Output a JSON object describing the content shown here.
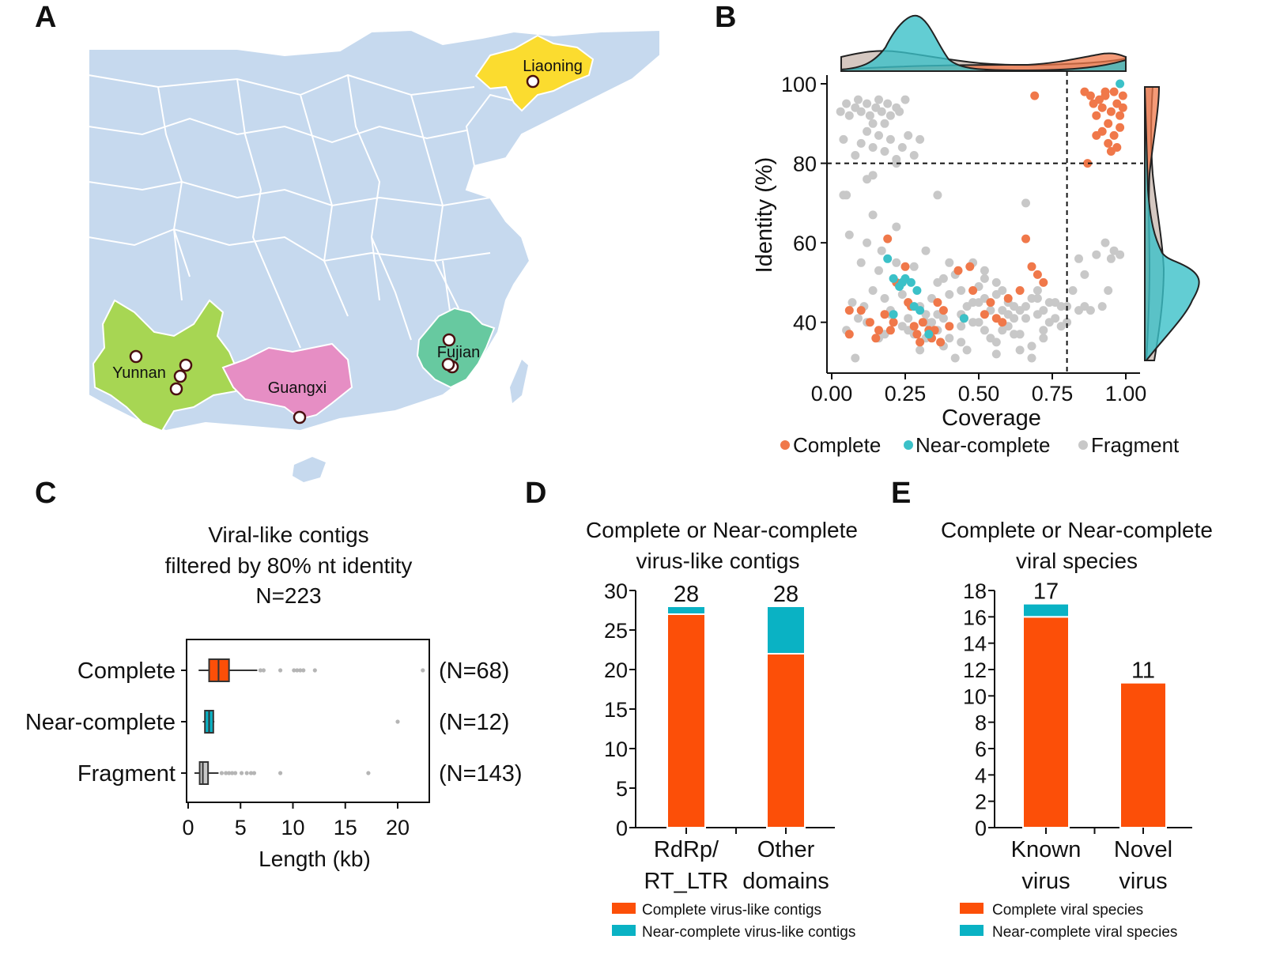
{
  "panels": {
    "a": {
      "letter": "A",
      "provinces": [
        "Liaoning",
        "Yunnan",
        "Guangxi",
        "Fujian"
      ],
      "colors": {
        "sea": "#ffffff",
        "land": "#c6d9ee",
        "border": "#ffffff",
        "liaoning": "#fbdc2f",
        "yunnan": "#a7d653",
        "guangxi": "#e68ec4",
        "fujian": "#67c9a0"
      }
    },
    "b": {
      "letter": "B"
    },
    "c": {
      "letter": "C"
    },
    "d": {
      "letter": "D"
    },
    "e": {
      "letter": "E"
    }
  },
  "colors": {
    "complete": "#f0784a",
    "near": "#3bc1c8",
    "fragment": "#c8c8c8",
    "bar_orange": "#fc4f08",
    "bar_teal": "#0ab2c4"
  },
  "chart_data": [
    {
      "id": "b",
      "type": "scatter",
      "xlabel": "Coverage",
      "ylabel": "Identity (%)",
      "xticks": [
        "0.00",
        "0.25",
        "0.50",
        "0.75",
        "1.00"
      ],
      "yticks": [
        "40",
        "60",
        "80",
        "100"
      ],
      "xlim": [
        0,
        1.0
      ],
      "ylim": [
        30,
        101
      ],
      "thresholds": {
        "x": 0.8,
        "y": 80
      },
      "legend": [
        "Complete",
        "Near-complete",
        "Fragment"
      ],
      "series": [
        {
          "name": "Complete",
          "points": [
            [
              0.06,
              43
            ],
            [
              0.1,
              43
            ],
            [
              0.13,
              40
            ],
            [
              0.15,
              36
            ],
            [
              0.16,
              38
            ],
            [
              0.18,
              42
            ],
            [
              0.19,
              61
            ],
            [
              0.21,
              40
            ],
            [
              0.22,
              50
            ],
            [
              0.24,
              50
            ],
            [
              0.25,
              54
            ],
            [
              0.26,
              45
            ],
            [
              0.27,
              44
            ],
            [
              0.28,
              39
            ],
            [
              0.29,
              37
            ],
            [
              0.3,
              35
            ],
            [
              0.31,
              40
            ],
            [
              0.33,
              38
            ],
            [
              0.34,
              36
            ],
            [
              0.35,
              38
            ],
            [
              0.37,
              35
            ],
            [
              0.38,
              43
            ],
            [
              0.4,
              39
            ],
            [
              0.43,
              53
            ],
            [
              0.45,
              41
            ],
            [
              0.48,
              48
            ],
            [
              0.52,
              42
            ],
            [
              0.54,
              45
            ],
            [
              0.56,
              41
            ],
            [
              0.58,
              40
            ],
            [
              0.6,
              46
            ],
            [
              0.64,
              48
            ],
            [
              0.66,
              61
            ],
            [
              0.68,
              54
            ],
            [
              0.7,
              52
            ],
            [
              0.72,
              50
            ],
            [
              0.06,
              37
            ],
            [
              0.36,
              45
            ],
            [
              0.2,
              38
            ],
            [
              0.47,
              54
            ],
            [
              0.69,
              97
            ],
            [
              0.86,
              98
            ],
            [
              0.88,
              97
            ],
            [
              0.89,
              95
            ],
            [
              0.9,
              92
            ],
            [
              0.91,
              96
            ],
            [
              0.92,
              94
            ],
            [
              0.93,
              97
            ],
            [
              0.94,
              90
            ],
            [
              0.95,
              93
            ],
            [
              0.96,
              98
            ],
            [
              0.97,
              95
            ],
            [
              0.98,
              92
            ],
            [
              0.99,
              97
            ],
            [
              0.9,
              87
            ],
            [
              0.92,
              88
            ],
            [
              0.94,
              85
            ],
            [
              0.96,
              87
            ],
            [
              0.98,
              89
            ],
            [
              0.97,
              84
            ],
            [
              0.95,
              83
            ],
            [
              0.87,
              80
            ],
            [
              0.93,
              98
            ],
            [
              0.99,
              94
            ]
          ]
        },
        {
          "name": "Near-complete",
          "points": [
            [
              0.19,
              56
            ],
            [
              0.21,
              51
            ],
            [
              0.23,
              49
            ],
            [
              0.24,
              50
            ],
            [
              0.25,
              51
            ],
            [
              0.27,
              50
            ],
            [
              0.28,
              44
            ],
            [
              0.29,
              48
            ],
            [
              0.3,
              43
            ],
            [
              0.33,
              37
            ],
            [
              0.45,
              41
            ],
            [
              0.21,
              42
            ],
            [
              0.98,
              100
            ]
          ]
        },
        {
          "name": "Fragment",
          "points": [
            [
              0.03,
              93
            ],
            [
              0.05,
              95
            ],
            [
              0.06,
              92
            ],
            [
              0.08,
              94
            ],
            [
              0.09,
              96
            ],
            [
              0.1,
              93
            ],
            [
              0.12,
              95
            ],
            [
              0.13,
              92
            ],
            [
              0.14,
              90
            ],
            [
              0.15,
              94
            ],
            [
              0.16,
              96
            ],
            [
              0.17,
              93
            ],
            [
              0.18,
              90
            ],
            [
              0.19,
              95
            ],
            [
              0.2,
              92
            ],
            [
              0.22,
              94
            ],
            [
              0.23,
              93
            ],
            [
              0.25,
              96
            ],
            [
              0.04,
              86
            ],
            [
              0.08,
              82
            ],
            [
              0.1,
              85
            ],
            [
              0.12,
              88
            ],
            [
              0.14,
              84
            ],
            [
              0.16,
              87
            ],
            [
              0.18,
              83
            ],
            [
              0.2,
              86
            ],
            [
              0.22,
              80
            ],
            [
              0.24,
              84
            ],
            [
              0.26,
              87
            ],
            [
              0.28,
              82
            ],
            [
              0.3,
              86
            ],
            [
              0.04,
              72
            ],
            [
              0.05,
              72
            ],
            [
              0.12,
              76
            ],
            [
              0.14,
              77
            ],
            [
              0.22,
              81
            ],
            [
              0.36,
              72
            ],
            [
              0.66,
              70
            ],
            [
              0.05,
              38
            ],
            [
              0.07,
              45
            ],
            [
              0.09,
              41
            ],
            [
              0.11,
              44
            ],
            [
              0.14,
              48
            ],
            [
              0.16,
              53
            ],
            [
              0.17,
              58
            ],
            [
              0.18,
              46
            ],
            [
              0.2,
              42
            ],
            [
              0.22,
              64
            ],
            [
              0.24,
              47
            ],
            [
              0.26,
              41
            ],
            [
              0.3,
              44
            ],
            [
              0.32,
              42
            ],
            [
              0.34,
              46
            ],
            [
              0.36,
              50
            ],
            [
              0.38,
              34
            ],
            [
              0.4,
              47
            ],
            [
              0.42,
              52
            ],
            [
              0.44,
              35
            ],
            [
              0.46,
              44
            ],
            [
              0.48,
              40
            ],
            [
              0.5,
              49
            ],
            [
              0.52,
              53
            ],
            [
              0.54,
              36
            ],
            [
              0.56,
              47
            ],
            [
              0.58,
              43
            ],
            [
              0.6,
              39
            ],
            [
              0.62,
              44
            ],
            [
              0.64,
              37
            ],
            [
              0.66,
              41
            ],
            [
              0.68,
              46
            ],
            [
              0.7,
              48
            ],
            [
              0.72,
              43
            ],
            [
              0.74,
              45
            ],
            [
              0.76,
              45
            ],
            [
              0.78,
              44
            ],
            [
              0.8,
              40
            ],
            [
              0.82,
              48
            ],
            [
              0.84,
              56
            ],
            [
              0.86,
              52
            ],
            [
              0.88,
              43
            ],
            [
              0.9,
              57
            ],
            [
              0.92,
              44
            ],
            [
              0.94,
              48
            ],
            [
              0.96,
              58
            ],
            [
              0.98,
              57
            ],
            [
              0.93,
              60
            ],
            [
              0.95,
              56
            ],
            [
              0.06,
              62
            ],
            [
              0.1,
              55
            ],
            [
              0.12,
              60
            ],
            [
              0.14,
              67
            ],
            [
              0.2,
              43
            ],
            [
              0.24,
              39
            ],
            [
              0.28,
              37
            ],
            [
              0.32,
              40
            ],
            [
              0.36,
              38
            ],
            [
              0.4,
              36
            ],
            [
              0.44,
              42
            ],
            [
              0.48,
              45
            ],
            [
              0.52,
              38
            ],
            [
              0.56,
              35
            ],
            [
              0.6,
              42
            ],
            [
              0.64,
              33
            ],
            [
              0.68,
              31
            ],
            [
              0.72,
              36
            ],
            [
              0.08,
              31
            ],
            [
              0.3,
              33
            ],
            [
              0.46,
              33
            ],
            [
              0.56,
              32
            ],
            [
              0.42,
              31
            ],
            [
              0.12,
              40
            ],
            [
              0.16,
              36
            ],
            [
              0.26,
              38
            ],
            [
              0.34,
              40
            ],
            [
              0.5,
              45
            ],
            [
              0.58,
              48
            ],
            [
              0.62,
              37
            ],
            [
              0.7,
              42
            ],
            [
              0.74,
              40
            ],
            [
              0.78,
              39
            ],
            [
              0.86,
              44
            ],
            [
              0.22,
              55
            ],
            [
              0.28,
              54
            ],
            [
              0.32,
              58
            ],
            [
              0.38,
              51
            ],
            [
              0.4,
              55
            ],
            [
              0.44,
              48
            ],
            [
              0.48,
              55
            ],
            [
              0.52,
              51
            ],
            [
              0.56,
              50
            ],
            [
              0.6,
              45
            ],
            [
              0.64,
              43
            ],
            [
              0.68,
              34
            ],
            [
              0.72,
              38
            ],
            [
              0.52,
              46
            ],
            [
              0.54,
              43
            ],
            [
              0.44,
              39
            ],
            [
              0.38,
              41
            ],
            [
              0.18,
              37
            ],
            [
              0.26,
              45
            ],
            [
              0.32,
              36
            ],
            [
              0.36,
              42
            ],
            [
              0.5,
              40
            ],
            [
              0.58,
              38
            ],
            [
              0.62,
              41
            ],
            [
              0.66,
              44
            ],
            [
              0.7,
              46
            ],
            [
              0.76,
              41
            ],
            [
              0.8,
              44
            ],
            [
              0.84,
              43
            ]
          ]
        }
      ]
    },
    {
      "id": "c",
      "type": "box",
      "title": [
        "Viral-like contigs",
        "filtered by 80% nt identity",
        "N=223"
      ],
      "xlabel": "Length (kb)",
      "xticks": [
        "0",
        "5",
        "10",
        "15",
        "20"
      ],
      "xlim": [
        0,
        23.5
      ],
      "series": [
        {
          "name": "Complete",
          "count": "(N=68)",
          "whisker_low": 1.0,
          "q1": 2.0,
          "median": 2.9,
          "q3": 3.9,
          "whisker_high": 6.6,
          "outliers": [
            6.9,
            7.2,
            8.8,
            10.1,
            10.4,
            10.7,
            11.0,
            12.1,
            22.4
          ]
        },
        {
          "name": "Near-complete",
          "count": "(N=12)",
          "whisker_low": 1.4,
          "q1": 1.6,
          "median": 2.0,
          "q3": 2.4,
          "whisker_high": 2.5,
          "outliers": [
            20.0
          ]
        },
        {
          "name": "Fragment",
          "count": "(N=143)",
          "whisker_low": 0.6,
          "q1": 1.1,
          "median": 1.4,
          "q3": 1.9,
          "whisker_high": 2.9,
          "outliers": [
            3.2,
            3.6,
            3.9,
            4.2,
            4.5,
            5.1,
            5.6,
            6.0,
            6.3,
            8.8,
            17.2
          ]
        }
      ]
    },
    {
      "id": "d",
      "type": "bar",
      "title": [
        "Complete or Near-complete",
        "virus-like contigs"
      ],
      "categories": [
        [
          "RdRp/",
          "RT_LTR"
        ],
        [
          "Other",
          "domains"
        ]
      ],
      "yticks": [
        "0",
        "5",
        "10",
        "15",
        "20",
        "25",
        "30"
      ],
      "ylim": [
        0,
        30
      ],
      "series": [
        {
          "name": "Complete virus-like contigs",
          "values": [
            27,
            22
          ]
        },
        {
          "name": "Near-complete virus-like contigs",
          "values": [
            1,
            6
          ]
        }
      ],
      "totals": [
        "28",
        "28"
      ]
    },
    {
      "id": "e",
      "type": "bar",
      "title": [
        "Complete or Near-complete",
        "viral species"
      ],
      "categories": [
        [
          "Known",
          "virus"
        ],
        [
          "Novel",
          "virus"
        ]
      ],
      "yticks": [
        "0",
        "2",
        "4",
        "6",
        "8",
        "10",
        "12",
        "14",
        "16",
        "18"
      ],
      "ylim": [
        0,
        18
      ],
      "series": [
        {
          "name": "Complete viral species",
          "values": [
            16,
            11
          ]
        },
        {
          "name": "Near-complete viral species",
          "values": [
            1,
            0
          ]
        }
      ],
      "totals": [
        "17",
        "11"
      ]
    }
  ]
}
